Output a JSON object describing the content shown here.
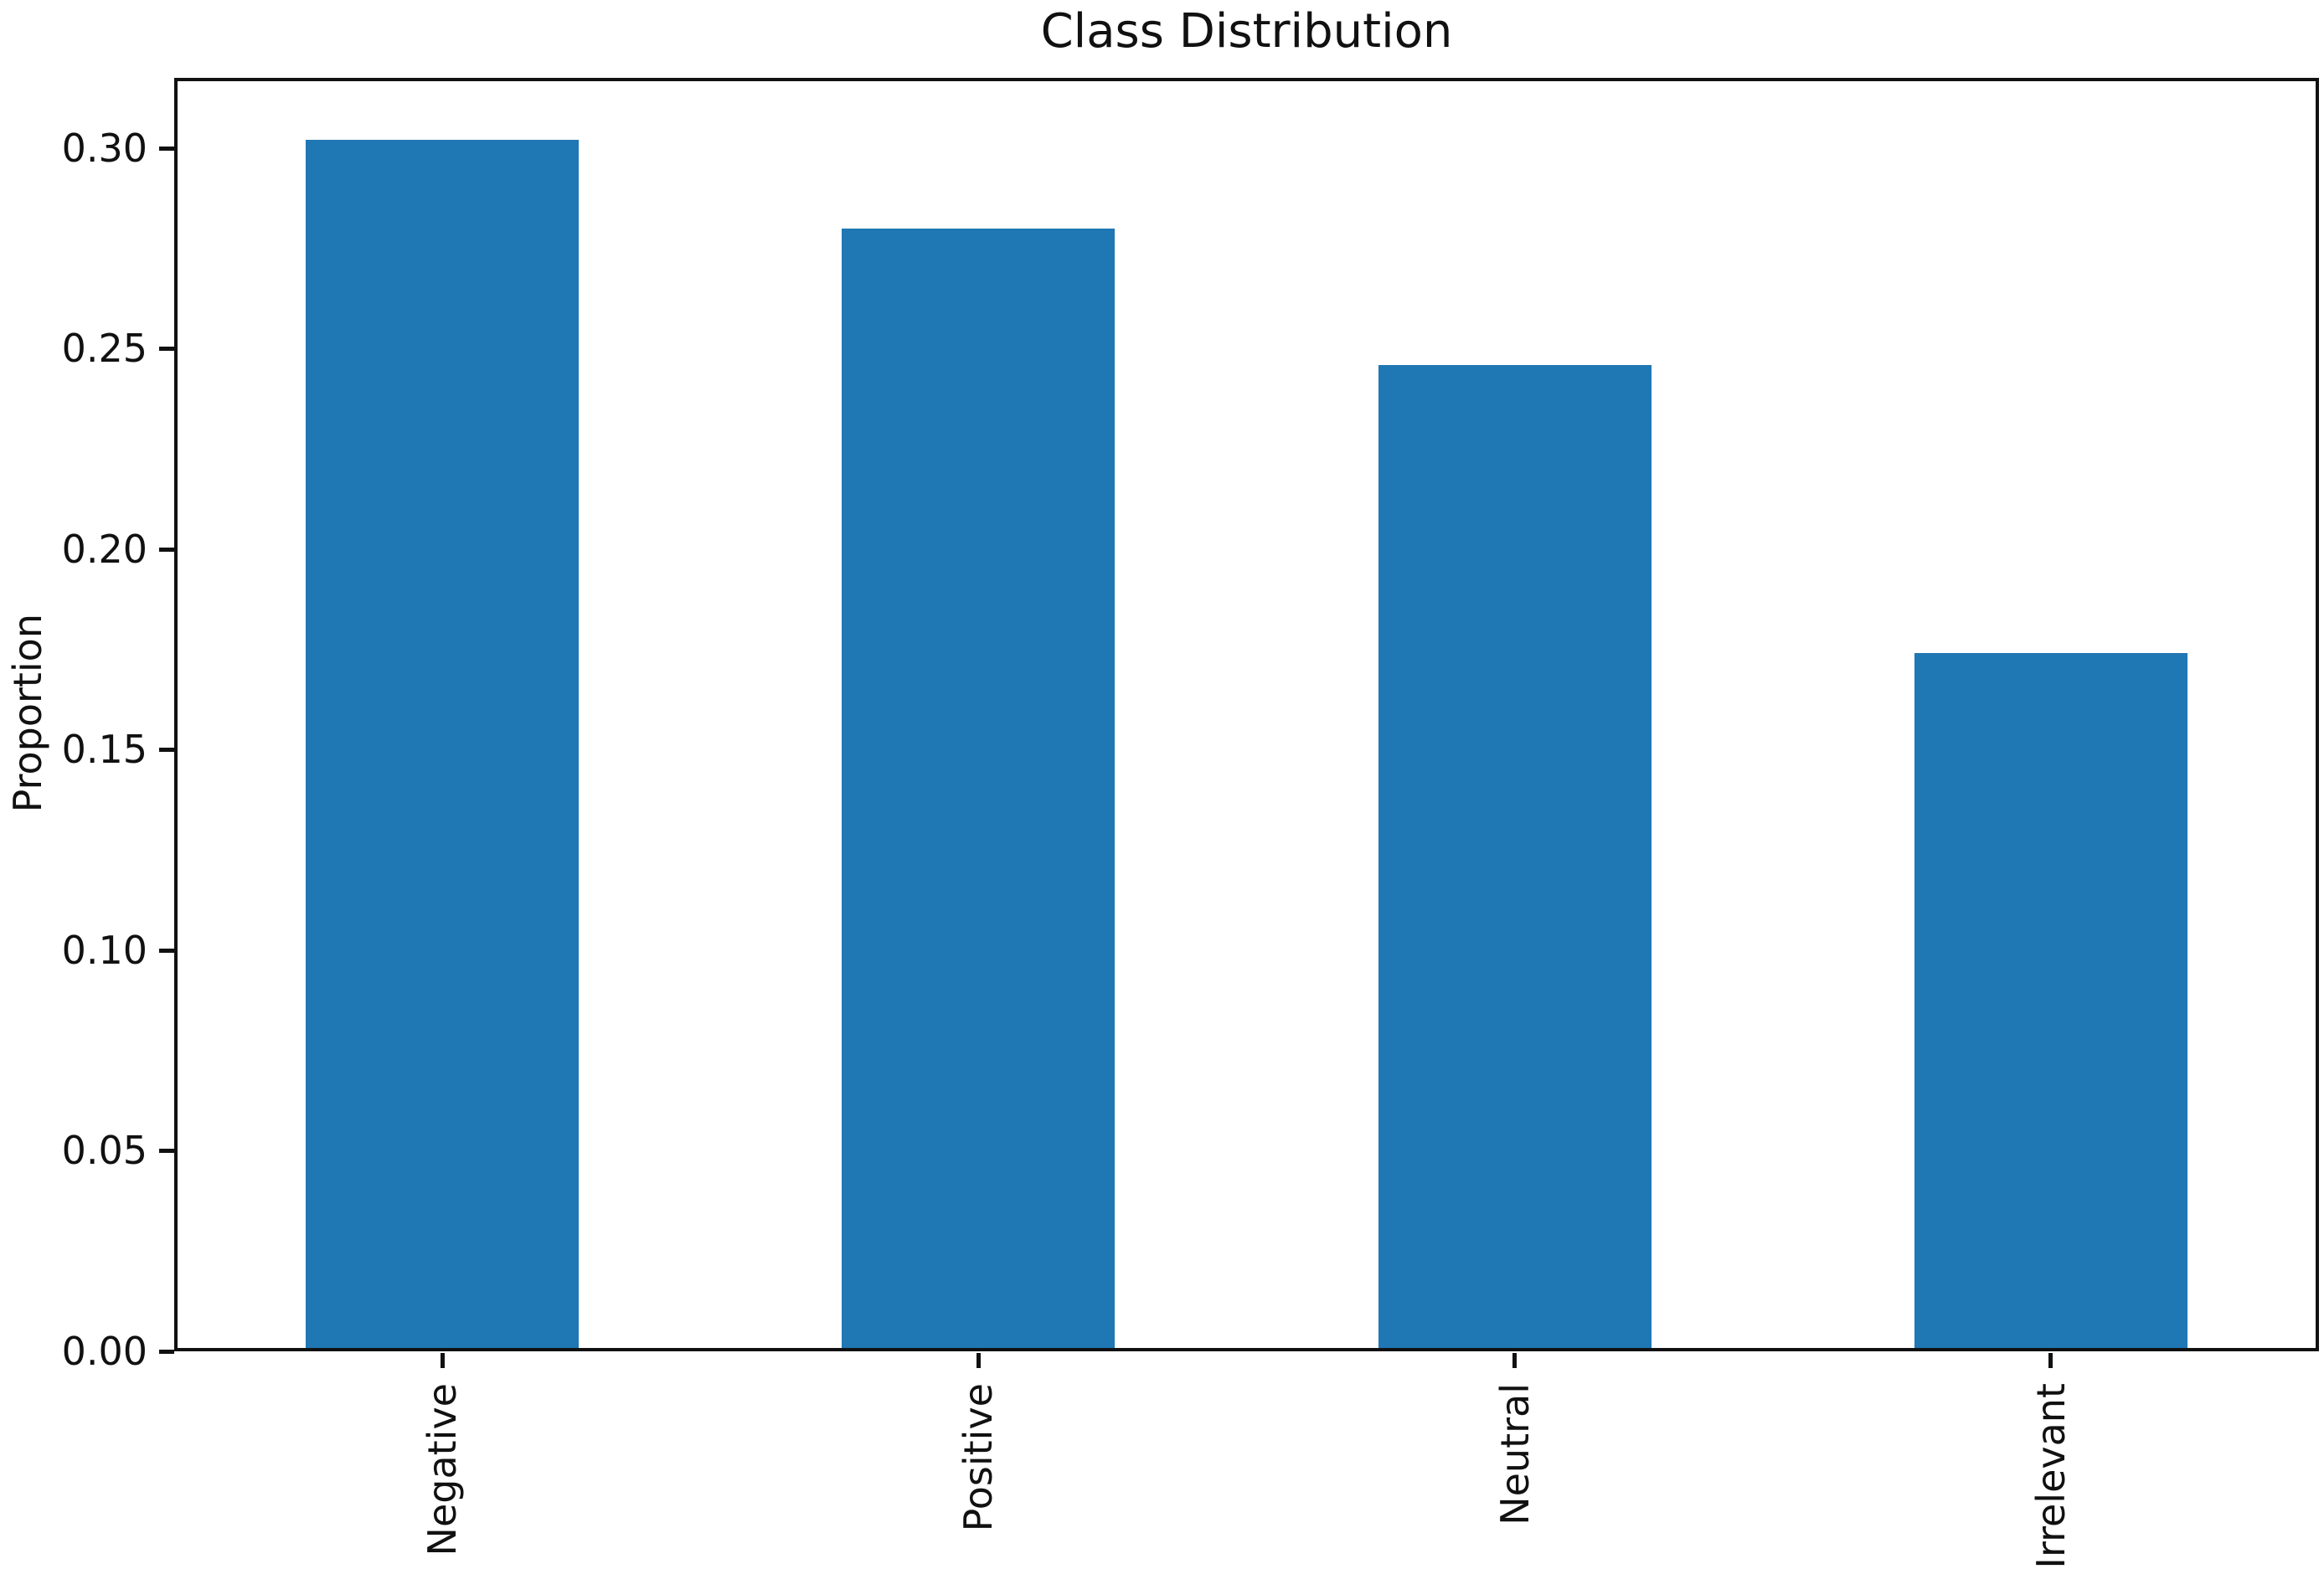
{
  "chart_data": {
    "type": "bar",
    "title": "Class Distribution",
    "xlabel": "",
    "ylabel": "Proportion",
    "categories": [
      "Negative",
      "Positive",
      "Neutral",
      "Irrelevant"
    ],
    "values": [
      0.302,
      0.28,
      0.246,
      0.174
    ],
    "ylim": [
      0,
      0.3175
    ],
    "yticks": [
      0.0,
      0.05,
      0.1,
      0.15,
      0.2,
      0.25,
      0.3
    ],
    "ytick_labels": [
      "0.00",
      "0.05",
      "0.10",
      "0.15",
      "0.20",
      "0.25",
      "0.30"
    ],
    "bar_color": "#1f77b4",
    "axis_color": "#111111",
    "grid": false,
    "legend": "none",
    "x_tick_label_rotation_deg": 90,
    "note_labels_clipped_at_bottom_edge": true
  }
}
